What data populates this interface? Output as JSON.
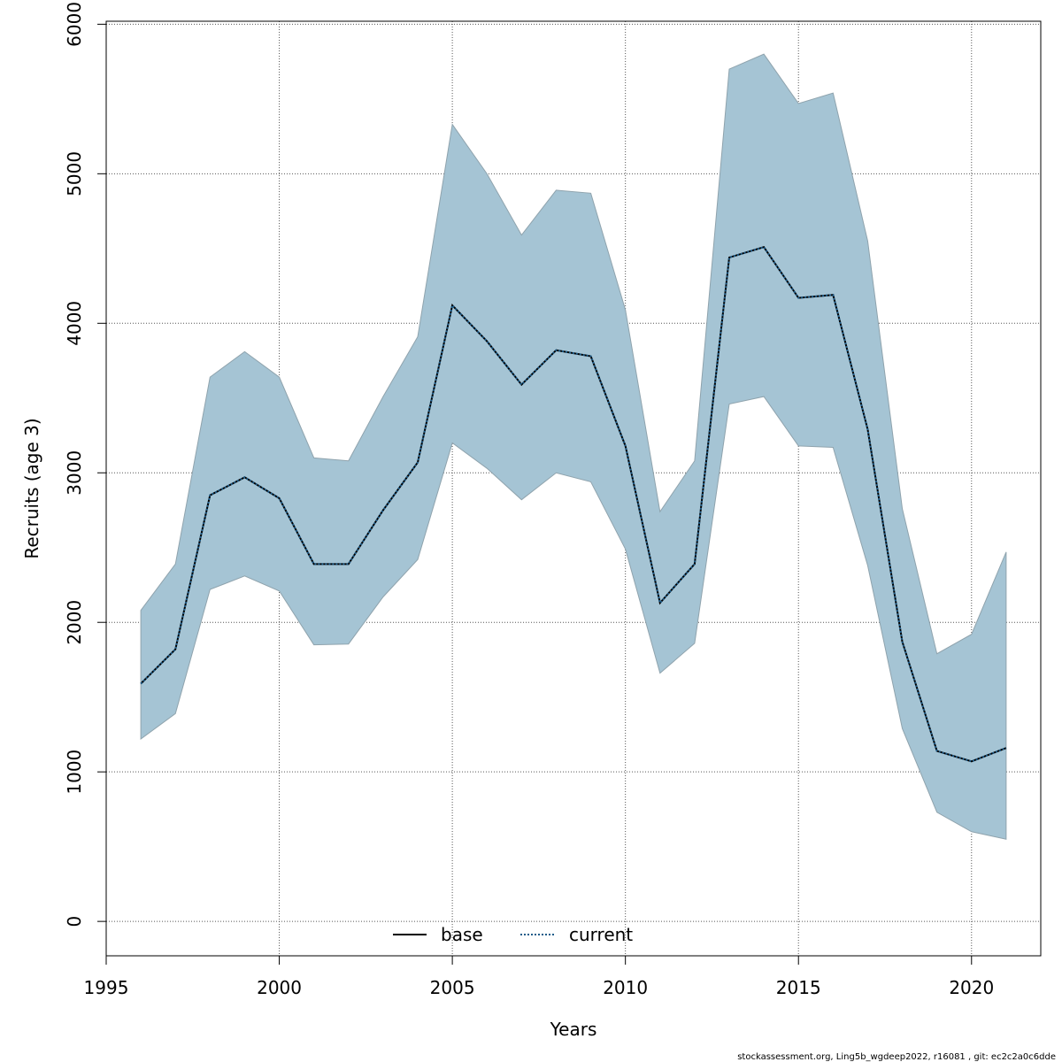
{
  "chart_data": {
    "type": "line",
    "xlabel": "Years",
    "ylabel": "Recruits (age 3)",
    "xlim": [
      1995,
      2022
    ],
    "ylim": [
      -230,
      6020
    ],
    "x_ticks": [
      1995,
      2000,
      2005,
      2010,
      2015,
      2020
    ],
    "y_ticks": [
      0,
      1000,
      2000,
      3000,
      4000,
      5000,
      6000
    ],
    "grid": true,
    "legend_position": "bottom-center",
    "x": [
      1996,
      1997,
      1998,
      1999,
      2000,
      2001,
      2002,
      2003,
      2004,
      2005,
      2006,
      2007,
      2008,
      2009,
      2010,
      2011,
      2012,
      2013,
      2014,
      2015,
      2016,
      2017,
      2018,
      2019,
      2020,
      2021
    ],
    "band": {
      "lower": [
        1220,
        1390,
        2220,
        2310,
        2210,
        1850,
        1855,
        2170,
        2420,
        3200,
        3030,
        2820,
        3000,
        2940,
        2490,
        1660,
        1860,
        3460,
        3510,
        3180,
        3170,
        2380,
        1290,
        730,
        600,
        550
      ],
      "upper": [
        2080,
        2390,
        3640,
        3810,
        3640,
        3100,
        3080,
        3510,
        3910,
        5330,
        5000,
        4590,
        4890,
        4870,
        4090,
        2740,
        3080,
        5700,
        5800,
        5470,
        5540,
        4550,
        2760,
        1790,
        1920,
        2470
      ],
      "color": "#a5c4d4"
    },
    "series": [
      {
        "name": "base",
        "values": [
          1590,
          1820,
          2850,
          2970,
          2830,
          2390,
          2390,
          2750,
          3070,
          4120,
          3880,
          3590,
          3820,
          3780,
          3180,
          2130,
          2390,
          4440,
          4510,
          4170,
          4190,
          3290,
          1870,
          1140,
          1070,
          1160
        ],
        "color": "#000000",
        "dash": "solid"
      },
      {
        "name": "current",
        "values": [
          1590,
          1820,
          2850,
          2970,
          2830,
          2390,
          2390,
          2750,
          3070,
          4120,
          3880,
          3590,
          3820,
          3780,
          3180,
          2130,
          2390,
          4440,
          4510,
          4170,
          4190,
          3290,
          1870,
          1140,
          1070,
          1160
        ],
        "color": "#1f5d8a",
        "dash": "dotted"
      }
    ]
  },
  "legend": {
    "base_label": "base",
    "current_label": "current"
  },
  "footer": {
    "text": "stockassessment.org, Ling5b_wgdeep2022, r16081 , git: ec2c2a0c6dde"
  }
}
